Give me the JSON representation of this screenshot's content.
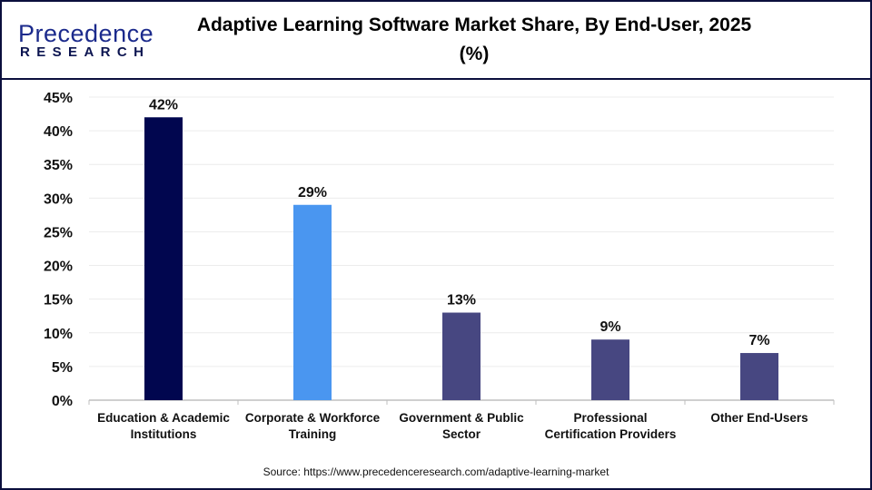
{
  "header": {
    "logo": {
      "line1": "Precedence",
      "line2": "RESEARCH"
    },
    "title": "Adaptive Learning Software Market Share, By End-User, 2025 (%)"
  },
  "chart_data": {
    "type": "bar",
    "title": "Adaptive Learning Software Market Share, By End-User, 2025 (%)",
    "categories": [
      [
        "Education & Academic",
        "Institutions"
      ],
      [
        "Corporate & Workforce",
        "Training"
      ],
      [
        "Government & Public",
        "Sector"
      ],
      [
        "Professional",
        "Certification Providers"
      ],
      [
        "Other End-Users"
      ]
    ],
    "values": [
      42,
      29,
      13,
      9,
      7
    ],
    "data_labels": [
      "42%",
      "29%",
      "13%",
      "9%",
      "7%"
    ],
    "colors": [
      "#01064f",
      "#4a96f0",
      "#474781",
      "#474781",
      "#474781"
    ],
    "ylim": [
      0,
      45
    ],
    "yticks": [
      "0%",
      "5%",
      "10%",
      "15%",
      "20%",
      "25%",
      "30%",
      "35%",
      "40%",
      "45%"
    ],
    "grid": true,
    "xlabel": "",
    "ylabel": ""
  },
  "source": "Source: https://www.precedenceresearch.com/adaptive-learning-market"
}
